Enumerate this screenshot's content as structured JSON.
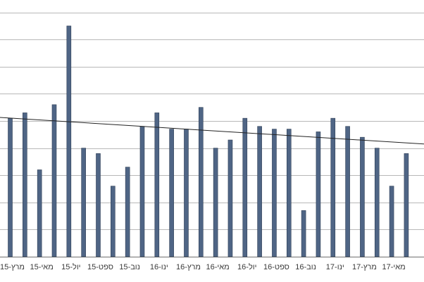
{
  "chart_data": {
    "type": "bar",
    "title": "",
    "xlabel": "",
    "ylabel": "",
    "grid": true,
    "ylim": [
      0,
      100
    ],
    "colors": {
      "bar": "#4f6585",
      "bar_edge": "#2f3f56",
      "grid": "#b8b8b8",
      "trend": "#222222"
    },
    "trendline": {
      "start": 51.3,
      "end": 41.5
    },
    "categories": [
      "מרץ-15",
      "",
      "מאי-15",
      "",
      "יול-15",
      "",
      "ספט-15",
      "",
      "נוב-15",
      "",
      "ינו-16",
      "",
      "מרץ-16",
      "",
      "מאי-16",
      "",
      "יול-16",
      "",
      "ספט-16",
      "",
      "נוב-16",
      "",
      "ינו-17",
      "",
      "מרץ-17",
      "",
      "מאי-17",
      ""
    ],
    "values": [
      51,
      53,
      32,
      56,
      85,
      40,
      38,
      26,
      33,
      48,
      53,
      47,
      47,
      55,
      40,
      43,
      51,
      48,
      47,
      47,
      17,
      46,
      51,
      48,
      44,
      40,
      26,
      38
    ]
  }
}
